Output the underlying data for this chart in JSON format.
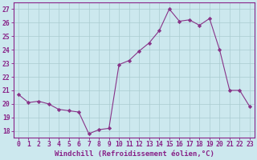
{
  "x": [
    0,
    1,
    2,
    3,
    4,
    5,
    6,
    7,
    8,
    9,
    10,
    11,
    12,
    13,
    14,
    15,
    16,
    17,
    18,
    19,
    20,
    21,
    22,
    23
  ],
  "y": [
    20.7,
    20.1,
    20.2,
    20.0,
    19.6,
    19.5,
    19.4,
    17.8,
    18.1,
    18.2,
    22.9,
    23.2,
    23.9,
    24.5,
    25.4,
    27.0,
    26.1,
    26.2,
    25.8,
    26.3,
    24.0,
    21.0,
    21.0,
    19.8
  ],
  "line_color": "#883388",
  "marker": "D",
  "marker_size": 2.2,
  "bg_color": "#cce8ee",
  "grid_color": "#aaccd0",
  "xlabel": "Windchill (Refroidissement éolien,°C)",
  "ylabel_ticks": [
    18,
    19,
    20,
    21,
    22,
    23,
    24,
    25,
    26,
    27
  ],
  "xlim": [
    -0.5,
    23.5
  ],
  "ylim": [
    17.5,
    27.5
  ],
  "xtick_labels": [
    "0",
    "1",
    "2",
    "3",
    "4",
    "5",
    "6",
    "7",
    "8",
    "9",
    "10",
    "11",
    "12",
    "13",
    "14",
    "15",
    "16",
    "17",
    "18",
    "19",
    "20",
    "21",
    "22",
    "23"
  ],
  "title_color": "#882288",
  "label_fontsize": 6.5,
  "tick_fontsize": 5.8
}
